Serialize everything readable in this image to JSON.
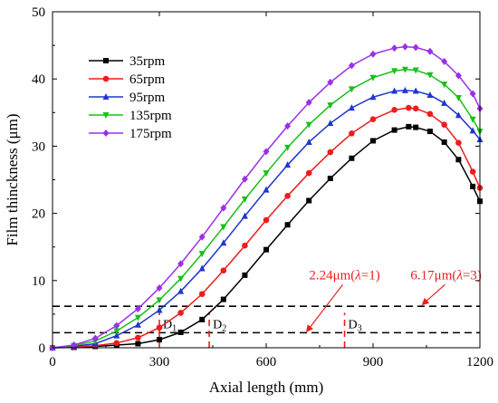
{
  "chart_data": {
    "type": "line",
    "xlabel": "Axial length (mm)",
    "ylabel": "Film thinckness (μm)",
    "xlim": [
      0,
      1200
    ],
    "ylim": [
      0,
      50
    ],
    "xticks": [
      0,
      300,
      600,
      900,
      1200
    ],
    "yticks": [
      0,
      10,
      20,
      30,
      40,
      50
    ],
    "grid": false,
    "legend_position": "top-left",
    "series": [
      {
        "name": "35rpm",
        "color": "#000000",
        "marker": "square",
        "x": [
          0,
          60,
          120,
          180,
          240,
          300,
          360,
          420,
          480,
          540,
          600,
          660,
          720,
          780,
          840,
          900,
          960,
          1000,
          1020,
          1060,
          1100,
          1140,
          1180,
          1200
        ],
        "y": [
          0,
          0.05,
          0.2,
          0.4,
          0.6,
          1.2,
          2.3,
          4.2,
          7.2,
          10.8,
          14.6,
          18.3,
          21.9,
          25.2,
          28.2,
          30.8,
          32.4,
          32.9,
          32.8,
          32.2,
          30.6,
          28.0,
          24.0,
          21.8
        ]
      },
      {
        "name": "65rpm",
        "color": "#ee1c1c",
        "marker": "circle",
        "x": [
          0,
          60,
          120,
          180,
          240,
          300,
          360,
          420,
          480,
          540,
          600,
          660,
          720,
          780,
          840,
          900,
          960,
          1000,
          1020,
          1060,
          1100,
          1140,
          1180,
          1200
        ],
        "y": [
          0,
          0.1,
          0.3,
          0.7,
          1.5,
          3.0,
          5.2,
          8.0,
          11.5,
          15.2,
          19.0,
          22.6,
          26.0,
          29.1,
          31.9,
          34.0,
          35.4,
          35.7,
          35.6,
          34.8,
          33.2,
          30.5,
          26.2,
          23.8
        ]
      },
      {
        "name": "95rpm",
        "color": "#1f36d1",
        "marker": "triangle-up",
        "x": [
          0,
          60,
          120,
          180,
          240,
          300,
          360,
          420,
          480,
          540,
          600,
          660,
          720,
          780,
          840,
          900,
          960,
          990,
          1020,
          1060,
          1100,
          1140,
          1180,
          1200
        ],
        "y": [
          0,
          0.2,
          0.6,
          1.8,
          3.4,
          5.6,
          8.4,
          11.8,
          15.6,
          19.6,
          23.5,
          27.2,
          30.6,
          33.4,
          35.7,
          37.3,
          38.2,
          38.3,
          38.2,
          37.6,
          36.4,
          34.6,
          32.3,
          31.0
        ]
      },
      {
        "name": "135rpm",
        "color": "#18c018",
        "marker": "triangle-down",
        "x": [
          0,
          60,
          120,
          180,
          240,
          300,
          360,
          420,
          480,
          540,
          600,
          660,
          720,
          780,
          840,
          900,
          960,
          990,
          1020,
          1060,
          1100,
          1140,
          1180,
          1200
        ],
        "y": [
          0,
          0.3,
          1.0,
          2.5,
          4.5,
          7.1,
          10.3,
          14.0,
          18.0,
          22.1,
          26.0,
          29.8,
          33.2,
          36.1,
          38.5,
          40.2,
          41.2,
          41.4,
          41.3,
          40.6,
          39.2,
          37.2,
          34.0,
          32.2
        ]
      },
      {
        "name": "175rpm",
        "color": "#9b30e8",
        "marker": "diamond",
        "x": [
          0,
          60,
          120,
          180,
          240,
          300,
          360,
          420,
          480,
          540,
          600,
          660,
          720,
          780,
          840,
          900,
          960,
          990,
          1020,
          1060,
          1100,
          1140,
          1180,
          1200
        ],
        "y": [
          0,
          0.4,
          1.4,
          3.3,
          5.8,
          8.9,
          12.5,
          16.5,
          20.8,
          25.1,
          29.2,
          33.0,
          36.5,
          39.5,
          42.0,
          43.7,
          44.6,
          44.8,
          44.7,
          44.1,
          42.6,
          40.5,
          37.8,
          35.6
        ]
      }
    ],
    "reference_lines": [
      {
        "y": 2.24,
        "style": "dashed",
        "color": "#000000"
      },
      {
        "y": 6.17,
        "style": "dashed",
        "color": "#000000"
      }
    ],
    "markers": [
      {
        "label": "D",
        "sub": "1",
        "x": 300
      },
      {
        "label": "D",
        "sub": "2",
        "x": 440
      },
      {
        "label": "D",
        "sub": "3",
        "x": 820
      }
    ],
    "annotations": [
      {
        "pre": "2.24μm(",
        "italic": "λ",
        "post": "=1)",
        "color": "#ee1c1c",
        "x": 820,
        "y": 10.2,
        "arrow_to": [
          715,
          2.5
        ]
      },
      {
        "pre": "6.17μm(",
        "italic": "λ",
        "post": "=3)",
        "color": "#ee1c1c",
        "x": 1105,
        "y": 10.2,
        "arrow_to": [
          1040,
          6.5
        ]
      }
    ]
  }
}
